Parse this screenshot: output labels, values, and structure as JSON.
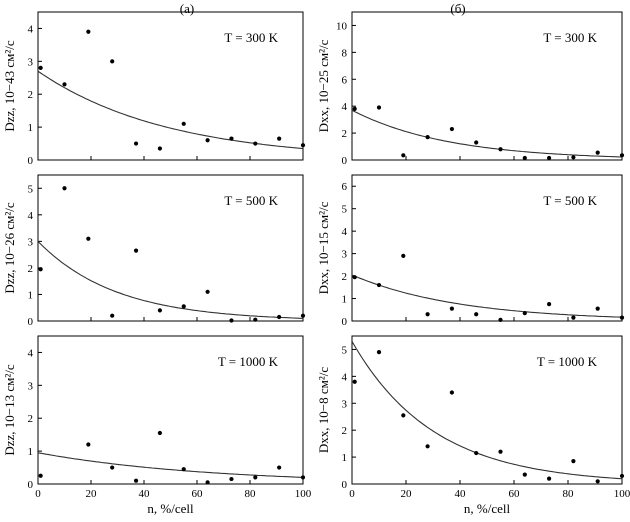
{
  "column_labels": [
    "(а)",
    "(б)"
  ],
  "x_axis_label": "n, %/cell",
  "chart_data": [
    {
      "type": "scatter",
      "panel": "a-top",
      "temperature": "T = 300 K",
      "ylabel": "Dzz, 10−43 см²/с",
      "xlim": [
        0,
        100
      ],
      "ylim": [
        0,
        4.5
      ],
      "xticks": [
        0,
        20,
        40,
        60,
        80,
        100
      ],
      "yticks": [
        0,
        1,
        2,
        3,
        4
      ],
      "points": [
        [
          1,
          2.8
        ],
        [
          10,
          2.3
        ],
        [
          19,
          3.9
        ],
        [
          28,
          3.0
        ],
        [
          37,
          0.5
        ],
        [
          46,
          0.35
        ],
        [
          55,
          1.1
        ],
        [
          64,
          0.6
        ],
        [
          73,
          0.65
        ],
        [
          82,
          0.5
        ],
        [
          91,
          0.65
        ],
        [
          100,
          0.45
        ]
      ],
      "fit": {
        "a": 2.7,
        "k": 0.0205
      }
    },
    {
      "type": "scatter",
      "panel": "a-middle",
      "temperature": "T = 500 K",
      "ylabel": "Dzz, 10−26 см²/с",
      "xlim": [
        0,
        100
      ],
      "ylim": [
        0,
        5.5
      ],
      "xticks": [
        0,
        20,
        40,
        60,
        80,
        100
      ],
      "yticks": [
        0,
        1,
        2,
        3,
        4,
        5
      ],
      "points": [
        [
          1,
          1.95
        ],
        [
          10,
          5.0
        ],
        [
          19,
          3.1
        ],
        [
          28,
          0.2
        ],
        [
          37,
          2.65
        ],
        [
          46,
          0.4
        ],
        [
          55,
          0.55
        ],
        [
          64,
          1.1
        ],
        [
          73,
          0.02
        ],
        [
          82,
          0.05
        ],
        [
          91,
          0.15
        ],
        [
          100,
          0.2
        ]
      ],
      "fit": {
        "a": 3.0,
        "k": 0.034
      }
    },
    {
      "type": "scatter",
      "panel": "a-bottom",
      "temperature": "T = 1000 K",
      "ylabel": "Dzz, 10−13 см²/с",
      "xlim": [
        0,
        100
      ],
      "ylim": [
        0,
        4.5
      ],
      "xticks": [
        0,
        20,
        40,
        60,
        80,
        100
      ],
      "yticks": [
        0,
        1,
        2,
        3,
        4
      ],
      "points": [
        [
          1,
          0.25
        ],
        [
          19,
          1.2
        ],
        [
          28,
          0.5
        ],
        [
          37,
          0.1
        ],
        [
          46,
          1.55
        ],
        [
          55,
          0.45
        ],
        [
          64,
          0.05
        ],
        [
          73,
          0.15
        ],
        [
          82,
          0.2
        ],
        [
          91,
          0.5
        ],
        [
          100,
          0.2
        ]
      ],
      "fit": {
        "a": 0.95,
        "k": 0.0155
      }
    },
    {
      "type": "scatter",
      "panel": "b-top",
      "temperature": "T = 300 K",
      "ylabel": "Dxx, 10−25 см²/с",
      "xlim": [
        0,
        100
      ],
      "ylim": [
        0,
        11
      ],
      "xticks": [
        0,
        20,
        40,
        60,
        80,
        100
      ],
      "yticks": [
        0,
        2,
        4,
        6,
        8,
        10
      ],
      "points": [
        [
          1,
          3.8
        ],
        [
          10,
          3.9
        ],
        [
          19,
          0.35
        ],
        [
          28,
          1.7
        ],
        [
          37,
          2.3
        ],
        [
          46,
          1.3
        ],
        [
          55,
          0.8
        ],
        [
          64,
          0.15
        ],
        [
          73,
          0.15
        ],
        [
          82,
          0.2
        ],
        [
          91,
          0.55
        ],
        [
          100,
          0.35
        ]
      ],
      "fit": {
        "a": 3.7,
        "k": 0.028
      }
    },
    {
      "type": "scatter",
      "panel": "b-middle",
      "temperature": "T = 500 K",
      "ylabel": "Dxx, 10−15 см²/с",
      "xlim": [
        0,
        100
      ],
      "ylim": [
        0,
        6.5
      ],
      "xticks": [
        0,
        20,
        40,
        60,
        80,
        100
      ],
      "yticks": [
        0,
        1,
        2,
        3,
        4,
        5,
        6
      ],
      "points": [
        [
          1,
          1.95
        ],
        [
          10,
          1.6
        ],
        [
          19,
          2.9
        ],
        [
          28,
          0.3
        ],
        [
          37,
          0.55
        ],
        [
          46,
          0.3
        ],
        [
          55,
          0.05
        ],
        [
          64,
          0.35
        ],
        [
          73,
          0.75
        ],
        [
          82,
          0.15
        ],
        [
          91,
          0.55
        ],
        [
          100,
          0.15
        ]
      ],
      "fit": {
        "a": 2.05,
        "k": 0.025
      }
    },
    {
      "type": "scatter",
      "panel": "b-bottom",
      "temperature": "T = 1000 K",
      "ylabel": "Dxx, 10−8 см²/с",
      "xlim": [
        0,
        100
      ],
      "ylim": [
        0,
        5.5
      ],
      "xticks": [
        0,
        20,
        40,
        60,
        80,
        100
      ],
      "yticks": [
        0,
        1,
        2,
        3,
        4,
        5
      ],
      "points": [
        [
          1,
          3.8
        ],
        [
          10,
          4.9
        ],
        [
          19,
          2.55
        ],
        [
          28,
          1.4
        ],
        [
          37,
          3.4
        ],
        [
          46,
          1.15
        ],
        [
          55,
          1.2
        ],
        [
          64,
          0.35
        ],
        [
          73,
          0.2
        ],
        [
          82,
          0.85
        ],
        [
          91,
          0.1
        ],
        [
          100,
          0.3
        ]
      ],
      "fit": {
        "a": 5.3,
        "k": 0.033
      }
    }
  ]
}
